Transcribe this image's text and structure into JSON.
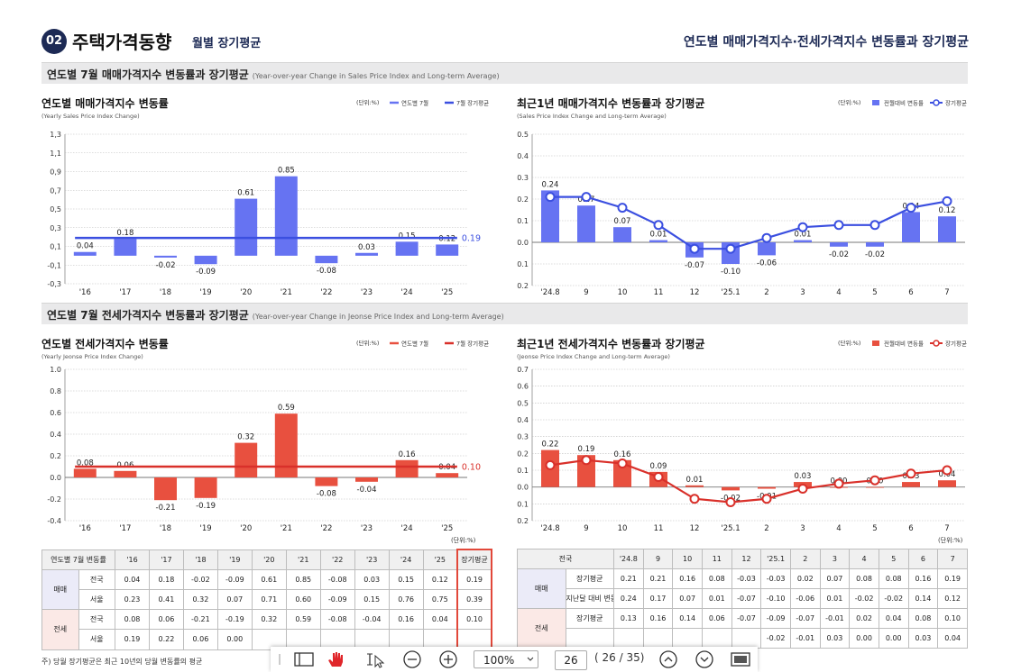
{
  "header": {
    "number": "02",
    "title": "주택가격동향",
    "subtitle": "월별 장기평균",
    "right": "연도별 매매가격지수·전세가격지수 변동률과 장기평균"
  },
  "sections": [
    {
      "title": "연도별 7월 매매가격지수 변동률과 장기평균",
      "subtitle": "(Year-over-year Change in Sales Price Index and Long-term Average)"
    },
    {
      "title": "연도별 7월 전세가격지수 변동률과 장기평균",
      "subtitle": "(Year-over-year Change in Jeonse Price Index and Long-term Average)"
    }
  ],
  "chart_data": [
    {
      "type": "bar",
      "title": "연도별 매매가격지수 변동률",
      "subtitle": "(Yearly Sales Price Index Change)",
      "unit": "(단위:%)",
      "categories": [
        "'16",
        "'17",
        "'18",
        "'19",
        "'20",
        "'21",
        "'22",
        "'23",
        "'24",
        "'25"
      ],
      "series": [
        {
          "name": "연도별 7월",
          "type": "bar",
          "color": "#6673f2",
          "values": [
            0.04,
            0.18,
            -0.02,
            -0.09,
            0.61,
            0.85,
            -0.08,
            0.03,
            0.15,
            0.12
          ]
        }
      ],
      "average": {
        "name": "7월 장기평균",
        "color": "#3b4fe0",
        "value": 0.19
      },
      "ylim": [
        -0.3,
        1.3
      ],
      "yticks": [
        {
          "value": 1.3,
          "label": "1,3"
        },
        {
          "value": 1.1,
          "label": "1,1"
        },
        {
          "value": 0.9,
          "label": "0,9"
        },
        {
          "value": 0.7,
          "label": "0,7"
        },
        {
          "value": 0.5,
          "label": "0,5"
        },
        {
          "value": 0.3,
          "label": "0,3"
        },
        {
          "value": 0.1,
          "label": "0,1"
        },
        {
          "value": -0.1,
          "label": "-0,1"
        },
        {
          "value": -0.3,
          "label": "-0,3"
        }
      ],
      "grid": true
    },
    {
      "type": "combo",
      "title": "최근1년 매매가격지수 변동률과 장기평균",
      "subtitle": "(Sales Price Index Change and Long-term Average)",
      "unit": "(단위:%)",
      "categories": [
        "'24.8",
        "9",
        "10",
        "11",
        "12",
        "'25.1",
        "2",
        "3",
        "4",
        "5",
        "6",
        "7"
      ],
      "series": [
        {
          "name": "전월대비 변동률",
          "type": "bar",
          "color": "#6673f2",
          "values": [
            0.24,
            0.17,
            0.07,
            0.01,
            -0.07,
            -0.1,
            -0.06,
            0.01,
            -0.02,
            -0.02,
            0.14,
            0.12
          ],
          "value_labels": [
            "0.24",
            "0.17",
            "0.07",
            "0.01",
            "-0.07",
            "-0.10",
            "-0.06",
            "0.01",
            "-0.02",
            "-0.02",
            "0.14",
            "0.12"
          ]
        },
        {
          "name": "장기평균",
          "type": "line",
          "color": "#3b4fe0",
          "values": [
            0.21,
            0.21,
            0.16,
            0.08,
            -0.03,
            -0.03,
            0.02,
            0.07,
            0.08,
            0.08,
            0.16,
            0.19
          ]
        }
      ],
      "ylim": [
        -0.2,
        0.5
      ],
      "yticks": [
        0.5,
        0.4,
        0.3,
        0.2,
        0.1,
        {
          "value": 0,
          "label": "0.0"
        },
        -0.1,
        -0.2
      ],
      "grid": true
    },
    {
      "type": "bar",
      "title": "연도별 전세가격지수 변동률",
      "subtitle": "(Yearly Jeonse Price Index Change)",
      "unit": "(단위:%)",
      "categories": [
        "'16",
        "'17",
        "'18",
        "'19",
        "'20",
        "'21",
        "'22",
        "'23",
        "'24",
        "'25"
      ],
      "series": [
        {
          "name": "연도별 7월",
          "type": "bar",
          "color": "#e8503f",
          "values": [
            0.08,
            0.06,
            -0.21,
            -0.19,
            0.32,
            0.59,
            -0.08,
            -0.04,
            0.16,
            0.04
          ]
        }
      ],
      "average": {
        "name": "7월 장기평균",
        "color": "#d9302a",
        "value": 0.1,
        "value_label": "0.10"
      },
      "ylim": [
        -0.4,
        1.0
      ],
      "yticks": [
        {
          "value": 1.0,
          "label": "1.0"
        },
        0.8,
        0.6,
        0.4,
        0.2,
        {
          "value": 0,
          "label": "0.0"
        },
        -0.2,
        -0.4
      ],
      "grid": true
    },
    {
      "type": "combo",
      "title": "최근1년 전세가격지수 변동률과 장기평균",
      "subtitle": "(Jeonse Price Index Change and Long-term Average)",
      "unit": "(단위:%)",
      "categories": [
        "'24.8",
        "9",
        "10",
        "11",
        "12",
        "'25.1",
        "2",
        "3",
        "4",
        "5",
        "6",
        "7"
      ],
      "series": [
        {
          "name": "전월대비 변동률",
          "type": "bar",
          "color": "#e8503f",
          "values": [
            0.22,
            0.19,
            0.16,
            0.09,
            0.01,
            -0.02,
            -0.01,
            0.03,
            0.0,
            0.0,
            0.03,
            0.04
          ],
          "value_labels": [
            "0.22",
            "0.19",
            "0.16",
            "0.09",
            "0.01",
            "-0.02",
            "-0.01",
            "0.03",
            "0.00",
            "0.00",
            "0.03",
            "0.04"
          ]
        },
        {
          "name": "장기평균",
          "type": "line",
          "color": "#d9302a",
          "values": [
            0.13,
            0.16,
            0.14,
            0.06,
            -0.07,
            -0.09,
            -0.07,
            -0.01,
            0.02,
            0.04,
            0.08,
            0.1
          ]
        }
      ],
      "ylim": [
        -0.2,
        0.7
      ],
      "yticks": [
        0.7,
        0.6,
        0.5,
        0.4,
        0.3,
        0.2,
        0.1,
        {
          "value": 0,
          "label": "0.0"
        },
        -0.1,
        -0.2
      ],
      "grid": true
    }
  ],
  "tables": [
    {
      "unit": "(단위:%)",
      "headers": [
        "연도별 7월 변동률",
        "'16",
        "'17",
        "'18",
        "'19",
        "'20",
        "'21",
        "'22",
        "'23",
        "'24",
        "'25",
        "장기평균"
      ],
      "groups": [
        {
          "name": "매매",
          "rows": [
            {
              "label": "전국",
              "cells": [
                "0.04",
                "0.18",
                "-0.02",
                "-0.09",
                "0.61",
                "0.85",
                "-0.08",
                "0.03",
                "0.15",
                "0.12",
                "0.19"
              ]
            },
            {
              "label": "서울",
              "cells": [
                "0.23",
                "0.41",
                "0.32",
                "0.07",
                "0.71",
                "0.60",
                "-0.09",
                "0.15",
                "0.76",
                "0.75",
                "0.39"
              ]
            }
          ]
        },
        {
          "name": "전세",
          "rows": [
            {
              "label": "전국",
              "cells": [
                "0.08",
                "0.06",
                "-0.21",
                "-0.19",
                "0.32",
                "0.59",
                "-0.08",
                "-0.04",
                "0.16",
                "0.04",
                "0.10"
              ]
            },
            {
              "label": "서울",
              "cells": [
                "0.19",
                "0.22",
                "0.06",
                "0.00",
                null,
                null,
                null,
                null,
                null,
                null,
                null
              ]
            }
          ]
        }
      ]
    },
    {
      "unit": "(단위:%)",
      "headers": [
        "전국",
        "'24.8",
        "9",
        "10",
        "11",
        "12",
        "'25.1",
        "2",
        "3",
        "4",
        "5",
        "6",
        "7"
      ],
      "groups": [
        {
          "name": "매매",
          "rows": [
            {
              "label": "장기평균",
              "cells": [
                "0.21",
                "0.21",
                "0.16",
                "0.08",
                "-0.03",
                "-0.03",
                "0.02",
                "0.07",
                "0.08",
                "0.08",
                "0.16",
                "0.19"
              ]
            },
            {
              "label": "지난달 대비 변동률",
              "cells": [
                "0.24",
                "0.17",
                "0.07",
                "0.01",
                "-0.07",
                "-0.10",
                "-0.06",
                "0.01",
                "-0.02",
                "-0.02",
                "0.14",
                "0.12"
              ]
            }
          ]
        },
        {
          "name": "전세",
          "rows": [
            {
              "label": "장기평균",
              "cells": [
                "0.13",
                "0.16",
                "0.14",
                "0.06",
                "-0.07",
                "-0.09",
                "-0.07",
                "-0.01",
                "0.02",
                "0.04",
                "0.08",
                "0.10"
              ]
            },
            {
              "label": null,
              "cells": [
                null,
                null,
                null,
                null,
                null,
                "-0.02",
                "-0.01",
                "0.03",
                "0.00",
                "0.00",
                "0.03",
                "0.04"
              ]
            }
          ]
        }
      ]
    }
  ],
  "footnote": "주) 당월 장기평균은 최근 10년의 당월 변동률의 평균",
  "toolbar": {
    "zoom": "100%",
    "page": "26",
    "page_info": "( 26 / 35)"
  }
}
